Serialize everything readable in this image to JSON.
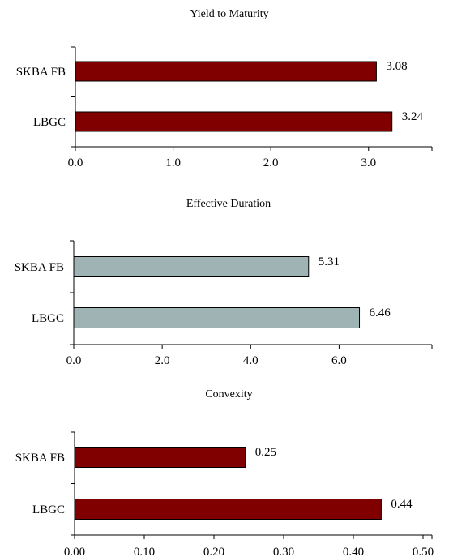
{
  "chart_data": [
    {
      "type": "bar",
      "orientation": "horizontal",
      "title": "Yield to Maturity",
      "categories": [
        "SKBA FB",
        "LBGC"
      ],
      "values": [
        3.08,
        3.24
      ],
      "data_labels": [
        "3.08",
        "3.24"
      ],
      "xlim": [
        0,
        3.4
      ],
      "xticks": [
        0,
        1,
        2,
        3
      ],
      "xtick_labels": [
        "0.0",
        "1.0",
        "2.0",
        "3.0"
      ],
      "bar_color": "#800000",
      "grid": false,
      "legend": "none"
    },
    {
      "type": "bar",
      "orientation": "horizontal",
      "title": "Effective Duration",
      "categories": [
        "SKBA FB",
        "LBGC"
      ],
      "values": [
        5.31,
        6.46
      ],
      "data_labels": [
        "5.31",
        "6.46"
      ],
      "xlim": [
        0,
        7
      ],
      "xticks": [
        0,
        2,
        4,
        6
      ],
      "xtick_labels": [
        "0.0",
        "2.0",
        "4.0",
        "6.0"
      ],
      "bar_color": "#9FB3B4",
      "grid": false,
      "legend": "none"
    },
    {
      "type": "bar",
      "orientation": "horizontal",
      "title": "Convexity",
      "categories": [
        "SKBA FB",
        "LBGC"
      ],
      "values": [
        0.245,
        0.44
      ],
      "data_labels": [
        "0.25",
        "0.44"
      ],
      "xlim": [
        0,
        0.5
      ],
      "xticks": [
        0,
        0.1,
        0.2,
        0.3,
        0.4,
        0.5
      ],
      "xtick_labels": [
        "0.00",
        "0.10",
        "0.20",
        "0.30",
        "0.40",
        "0.50"
      ],
      "bar_color": "#800000",
      "grid": false,
      "legend": "none"
    }
  ]
}
